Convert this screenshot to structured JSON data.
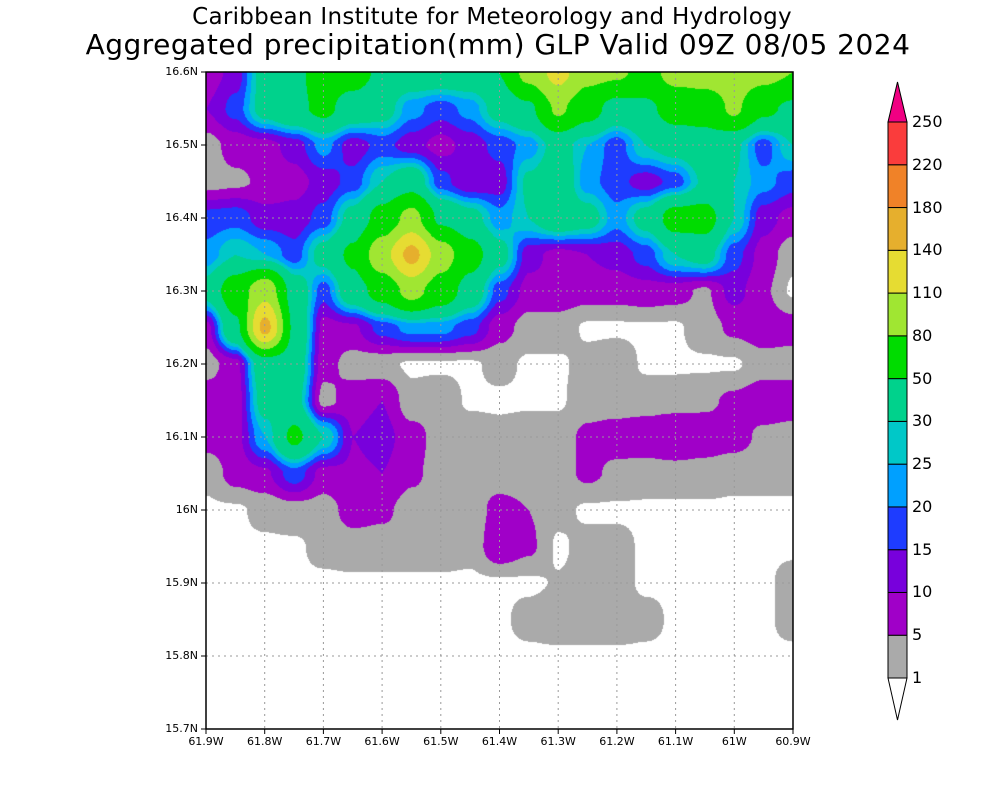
{
  "title": {
    "line1": "Caribbean Institute for Meteorology and Hydrology",
    "line2": "Aggregated precipitation(mm) GLP Valid 09Z 08/05 2024"
  },
  "chart_data": {
    "type": "heatmap",
    "title": "Aggregated precipitation(mm) GLP Valid 09Z 08/05 2024",
    "units": "mm",
    "xlim": [
      -61.9,
      -60.9
    ],
    "ylim": [
      15.7,
      16.6
    ],
    "x_tick_labels": [
      "61.9W",
      "61.8W",
      "61.7W",
      "61.6W",
      "61.5W",
      "61.4W",
      "61.3W",
      "61.2W",
      "61.1W",
      "61W",
      "60.9W"
    ],
    "y_tick_labels": [
      "16.6N",
      "16.5N",
      "16.4N",
      "16.3N",
      "16.2N",
      "16.1N",
      "16N",
      "15.9N",
      "15.8N",
      "15.7N"
    ],
    "grid": true,
    "grid_lon": [
      -61.9,
      -61.85,
      -61.8,
      -61.75,
      -61.7,
      -61.65,
      -61.6,
      -61.55,
      -61.5,
      -61.45,
      -61.4,
      -61.35,
      -61.3,
      -61.25,
      -61.2,
      -61.15,
      -61.1,
      -61.05,
      -61.0,
      -60.95,
      -60.9
    ],
    "grid_lat": [
      16.6,
      16.55,
      16.5,
      16.45,
      16.4,
      16.35,
      16.3,
      16.25,
      16.2,
      16.15,
      16.1,
      16.05,
      16.0,
      15.95,
      15.9,
      15.85,
      15.8,
      15.75,
      15.7
    ],
    "values": [
      [
        7,
        12,
        35,
        45,
        60,
        60,
        45,
        40,
        40,
        40,
        50,
        90,
        120,
        90,
        85,
        70,
        90,
        95,
        95,
        90,
        80
      ],
      [
        10,
        17,
        35,
        45,
        55,
        40,
        35,
        22,
        17,
        22,
        35,
        45,
        85,
        60,
        40,
        45,
        60,
        60,
        85,
        55,
        45
      ],
      [
        3,
        7,
        8,
        12,
        22,
        12,
        17,
        12,
        8,
        12,
        17,
        22,
        35,
        25,
        17,
        30,
        35,
        40,
        32,
        17,
        30
      ],
      [
        3,
        4,
        6,
        8,
        12,
        17,
        30,
        40,
        17,
        10,
        12,
        32,
        40,
        22,
        17,
        12,
        17,
        32,
        30,
        22,
        17
      ],
      [
        17,
        18,
        12,
        12,
        17,
        35,
        60,
        90,
        45,
        35,
        22,
        30,
        40,
        35,
        22,
        35,
        60,
        60,
        30,
        12,
        8
      ],
      [
        22,
        30,
        25,
        17,
        35,
        55,
        100,
        150,
        95,
        60,
        35,
        12,
        8,
        10,
        12,
        17,
        30,
        35,
        17,
        8,
        2
      ],
      [
        35,
        65,
        100,
        40,
        17,
        40,
        60,
        90,
        65,
        40,
        17,
        8,
        8,
        7,
        7,
        8,
        7,
        4,
        12,
        6,
        0.5
      ],
      [
        8,
        45,
        150,
        45,
        8,
        9,
        17,
        22,
        22,
        17,
        7,
        3,
        3,
        0.5,
        0.5,
        0.5,
        0.5,
        3,
        6,
        8,
        7
      ],
      [
        3,
        8,
        40,
        40,
        7,
        3,
        2,
        0.5,
        0.5,
        0.5,
        2,
        0.5,
        0.5,
        2,
        3,
        0.5,
        0.5,
        0.5,
        0.5,
        3,
        3
      ],
      [
        8,
        7,
        35,
        35,
        3,
        8,
        10,
        2,
        3,
        0.5,
        0.5,
        0.5,
        0.5,
        3,
        3,
        3,
        3,
        4,
        6,
        8,
        8
      ],
      [
        7,
        8,
        25,
        55,
        30,
        10,
        12,
        7,
        3,
        3,
        2,
        3,
        3,
        6,
        7,
        8,
        10,
        8,
        7,
        4,
        3
      ],
      [
        2,
        7,
        9,
        18,
        8,
        9,
        10,
        6,
        3,
        3,
        2,
        2,
        3,
        6,
        4,
        3,
        3,
        3,
        2,
        2,
        2
      ],
      [
        0.5,
        0.5,
        2,
        3,
        3,
        7,
        6,
        3,
        3,
        2,
        7,
        5,
        2,
        0.5,
        0.5,
        0.5,
        0.5,
        0.5,
        0.5,
        0.5,
        0.5
      ],
      [
        0.5,
        0.5,
        0.5,
        0.5,
        2,
        3,
        3,
        3,
        3,
        2,
        9,
        6,
        0.5,
        2,
        2,
        0.5,
        0.5,
        0.5,
        0.5,
        0.5,
        0.5
      ],
      [
        0.5,
        0.5,
        0.5,
        0.5,
        0.5,
        0.5,
        0.5,
        0.5,
        0.5,
        0.5,
        0.5,
        0.5,
        1.2,
        2,
        2,
        0.5,
        0.5,
        0.5,
        0.5,
        0.5,
        2
      ],
      [
        0.5,
        0.5,
        0.5,
        0.5,
        0.5,
        0.5,
        0.5,
        0.5,
        0.5,
        0.5,
        0.5,
        2,
        3,
        3,
        3,
        2,
        0.5,
        0.5,
        0.5,
        0.5,
        2
      ],
      [
        0.5,
        0.5,
        0.5,
        0.5,
        0.5,
        0.5,
        0.5,
        0.5,
        0.5,
        0.5,
        0.5,
        0.5,
        0.5,
        0.5,
        0.5,
        0.5,
        0.5,
        0.5,
        0.5,
        0.5,
        0.5
      ],
      [
        0.5,
        0.5,
        0.5,
        0.5,
        0.5,
        0.5,
        0.5,
        0.5,
        0.5,
        0.5,
        0.5,
        0.5,
        0.5,
        0.5,
        0.5,
        0.5,
        0.5,
        0.5,
        0.5,
        0.5,
        0.5
      ],
      [
        0.5,
        0.5,
        0.5,
        0.5,
        0.5,
        0.5,
        0.5,
        0.5,
        0.5,
        0.5,
        0.5,
        0.5,
        0.5,
        0.5,
        0.5,
        0.5,
        0.5,
        0.5,
        0.5,
        0.5,
        0.5
      ]
    ],
    "legend": {
      "placement": "right",
      "levels": [
        1,
        5,
        10,
        15,
        20,
        25,
        30,
        50,
        80,
        110,
        140,
        180,
        220,
        250
      ],
      "labels": [
        "1",
        "5",
        "10",
        "15",
        "20",
        "25",
        "30",
        "50",
        "80",
        "110",
        "140",
        "180",
        "220",
        "250"
      ],
      "colors": [
        "#aaaaaa",
        "#a000c8",
        "#7800dc",
        "#1e3cff",
        "#00a0ff",
        "#00c8c8",
        "#00d28c",
        "#00dc00",
        "#a0e632",
        "#e6dc32",
        "#e6af2d",
        "#f08228",
        "#fa3c3c",
        "#f00082"
      ],
      "below_color": "#ffffff"
    }
  }
}
